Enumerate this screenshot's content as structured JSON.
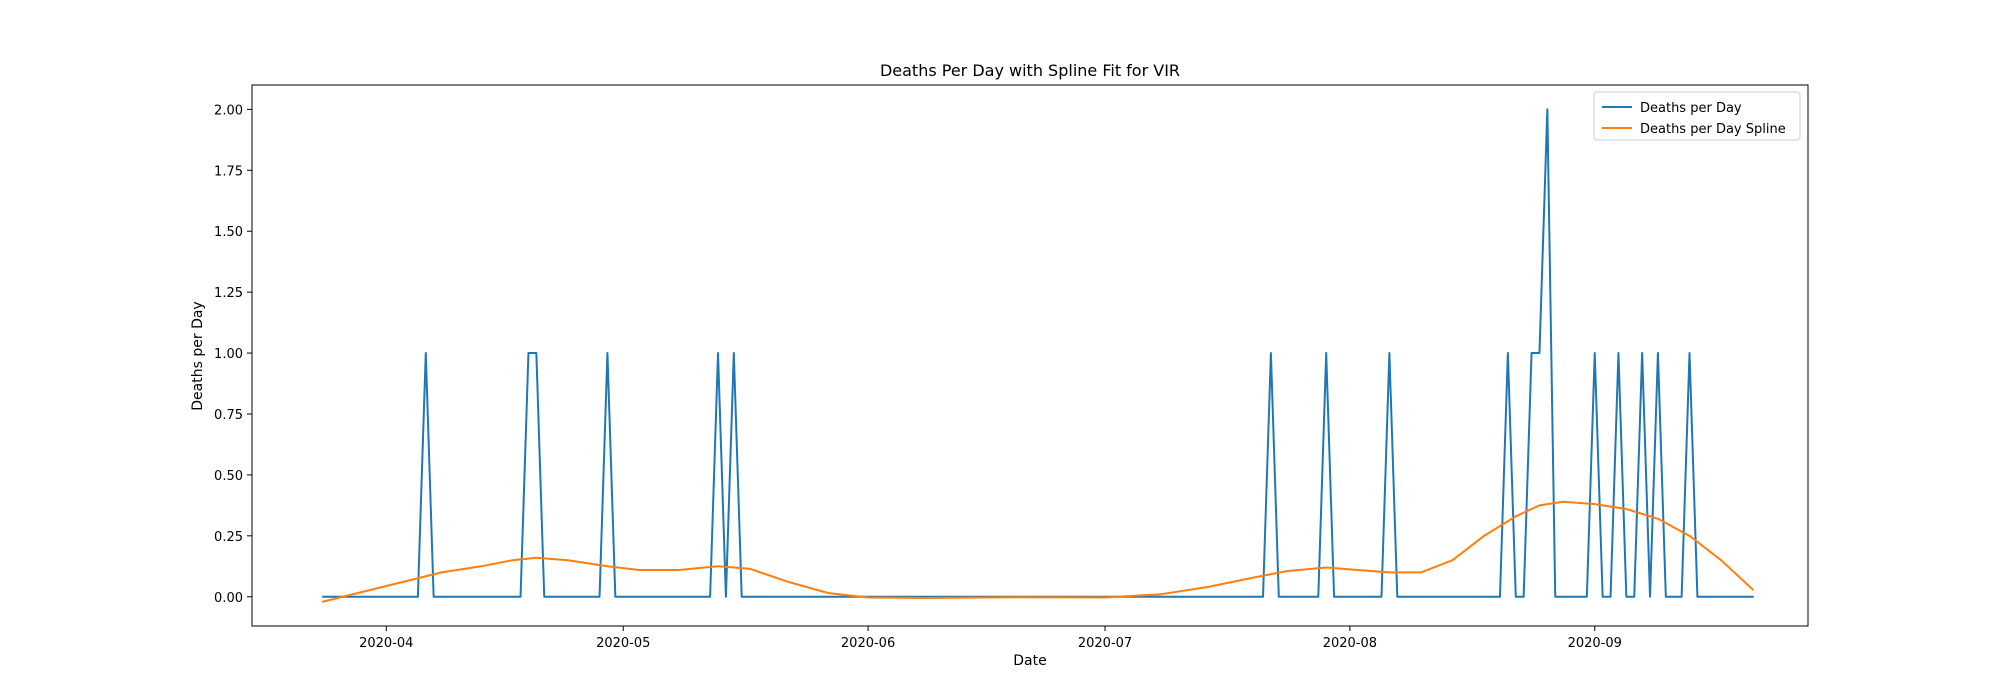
{
  "chart_data": {
    "type": "line",
    "title": "Deaths Per Day with Spline Fit for VIR",
    "xlabel": "Date",
    "ylabel": "Deaths per Day",
    "x_tick_labels": [
      "2020-04",
      "2020-05",
      "2020-06",
      "2020-07",
      "2020-08",
      "2020-09"
    ],
    "x_tick_dates": [
      "2020-04-01",
      "2020-05-01",
      "2020-06-01",
      "2020-07-01",
      "2020-08-01",
      "2020-09-01"
    ],
    "y_tick_labels": [
      "0.00",
      "0.25",
      "0.50",
      "0.75",
      "1.00",
      "1.25",
      "1.50",
      "1.75",
      "2.00"
    ],
    "y_ticks": [
      0,
      0.25,
      0.5,
      0.75,
      1.0,
      1.25,
      1.5,
      1.75,
      2.0
    ],
    "xlim": [
      "2020-03-15",
      "2020-09-28"
    ],
    "ylim": [
      -0.12,
      2.1
    ],
    "grid": false,
    "legend_position": "top-right",
    "series": [
      {
        "name": "Deaths per Day",
        "color": "#1f77b4",
        "points": [
          {
            "x": "2020-03-24",
            "y": 0
          },
          {
            "x": "2020-04-05",
            "y": 0
          },
          {
            "x": "2020-04-06",
            "y": 1
          },
          {
            "x": "2020-04-07",
            "y": 0
          },
          {
            "x": "2020-04-18",
            "y": 0
          },
          {
            "x": "2020-04-19",
            "y": 1
          },
          {
            "x": "2020-04-20",
            "y": 1
          },
          {
            "x": "2020-04-21",
            "y": 0
          },
          {
            "x": "2020-04-28",
            "y": 0
          },
          {
            "x": "2020-04-29",
            "y": 1
          },
          {
            "x": "2020-04-30",
            "y": 0
          },
          {
            "x": "2020-05-12",
            "y": 0
          },
          {
            "x": "2020-05-13",
            "y": 1
          },
          {
            "x": "2020-05-14",
            "y": 0
          },
          {
            "x": "2020-05-15",
            "y": 1
          },
          {
            "x": "2020-05-16",
            "y": 0
          },
          {
            "x": "2020-07-21",
            "y": 0
          },
          {
            "x": "2020-07-22",
            "y": 1
          },
          {
            "x": "2020-07-23",
            "y": 0
          },
          {
            "x": "2020-07-28",
            "y": 0
          },
          {
            "x": "2020-07-29",
            "y": 1
          },
          {
            "x": "2020-07-30",
            "y": 0
          },
          {
            "x": "2020-08-05",
            "y": 0
          },
          {
            "x": "2020-08-06",
            "y": 1
          },
          {
            "x": "2020-08-07",
            "y": 0
          },
          {
            "x": "2020-08-20",
            "y": 0
          },
          {
            "x": "2020-08-21",
            "y": 1
          },
          {
            "x": "2020-08-22",
            "y": 0
          },
          {
            "x": "2020-08-23",
            "y": 0
          },
          {
            "x": "2020-08-24",
            "y": 1
          },
          {
            "x": "2020-08-25",
            "y": 1
          },
          {
            "x": "2020-08-26",
            "y": 2
          },
          {
            "x": "2020-08-27",
            "y": 0
          },
          {
            "x": "2020-08-31",
            "y": 0
          },
          {
            "x": "2020-09-01",
            "y": 1
          },
          {
            "x": "2020-09-02",
            "y": 0
          },
          {
            "x": "2020-09-03",
            "y": 0
          },
          {
            "x": "2020-09-04",
            "y": 1
          },
          {
            "x": "2020-09-05",
            "y": 0
          },
          {
            "x": "2020-09-06",
            "y": 0
          },
          {
            "x": "2020-09-07",
            "y": 1
          },
          {
            "x": "2020-09-08",
            "y": 0
          },
          {
            "x": "2020-09-09",
            "y": 1
          },
          {
            "x": "2020-09-10",
            "y": 0
          },
          {
            "x": "2020-09-12",
            "y": 0
          },
          {
            "x": "2020-09-13",
            "y": 1
          },
          {
            "x": "2020-09-14",
            "y": 0
          },
          {
            "x": "2020-09-21",
            "y": 0
          }
        ]
      },
      {
        "name": "Deaths per Day Spline",
        "color": "#ff7f0e",
        "points": [
          {
            "x": "2020-03-24",
            "y": -0.02
          },
          {
            "x": "2020-03-29",
            "y": 0.02
          },
          {
            "x": "2020-04-03",
            "y": 0.06
          },
          {
            "x": "2020-04-08",
            "y": 0.1
          },
          {
            "x": "2020-04-13",
            "y": 0.125
          },
          {
            "x": "2020-04-17",
            "y": 0.15
          },
          {
            "x": "2020-04-20",
            "y": 0.16
          },
          {
            "x": "2020-04-24",
            "y": 0.15
          },
          {
            "x": "2020-04-29",
            "y": 0.125
          },
          {
            "x": "2020-05-03",
            "y": 0.11
          },
          {
            "x": "2020-05-08",
            "y": 0.11
          },
          {
            "x": "2020-05-13",
            "y": 0.125
          },
          {
            "x": "2020-05-17",
            "y": 0.115
          },
          {
            "x": "2020-05-22",
            "y": 0.06
          },
          {
            "x": "2020-05-27",
            "y": 0.015
          },
          {
            "x": "2020-06-01",
            "y": -0.003
          },
          {
            "x": "2020-06-08",
            "y": -0.005
          },
          {
            "x": "2020-06-20",
            "y": -0.002
          },
          {
            "x": "2020-07-01",
            "y": -0.003
          },
          {
            "x": "2020-07-08",
            "y": 0.01
          },
          {
            "x": "2020-07-14",
            "y": 0.04
          },
          {
            "x": "2020-07-20",
            "y": 0.08
          },
          {
            "x": "2020-07-24",
            "y": 0.105
          },
          {
            "x": "2020-07-29",
            "y": 0.12
          },
          {
            "x": "2020-08-02",
            "y": 0.11
          },
          {
            "x": "2020-08-06",
            "y": 0.1
          },
          {
            "x": "2020-08-10",
            "y": 0.1
          },
          {
            "x": "2020-08-14",
            "y": 0.15
          },
          {
            "x": "2020-08-18",
            "y": 0.25
          },
          {
            "x": "2020-08-22",
            "y": 0.33
          },
          {
            "x": "2020-08-25",
            "y": 0.375
          },
          {
            "x": "2020-08-28",
            "y": 0.39
          },
          {
            "x": "2020-09-01",
            "y": 0.38
          },
          {
            "x": "2020-09-05",
            "y": 0.36
          },
          {
            "x": "2020-09-09",
            "y": 0.32
          },
          {
            "x": "2020-09-13",
            "y": 0.25
          },
          {
            "x": "2020-09-17",
            "y": 0.15
          },
          {
            "x": "2020-09-21",
            "y": 0.03
          }
        ]
      }
    ]
  }
}
